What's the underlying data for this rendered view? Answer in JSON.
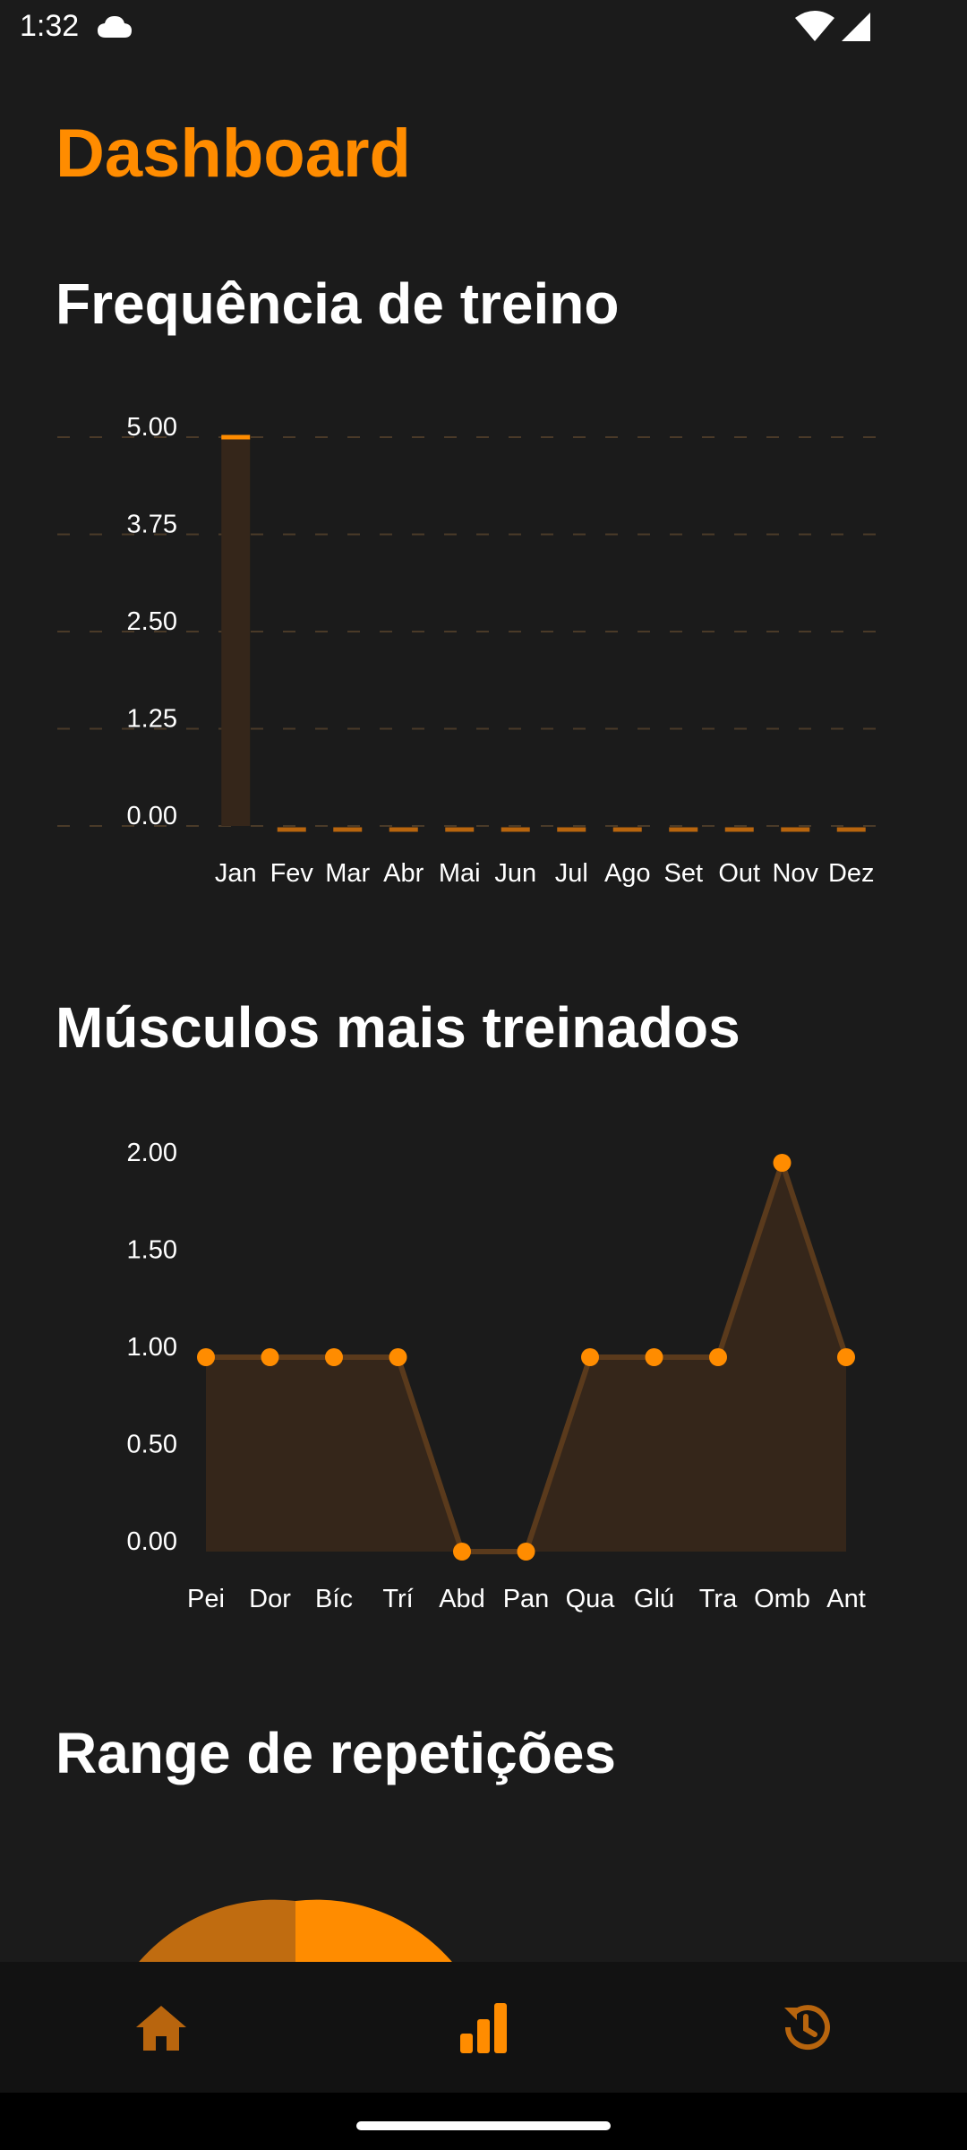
{
  "status_bar": {
    "time": "1:32",
    "icons": [
      "cloud-icon",
      "wifi-icon",
      "cell-signal-icon"
    ]
  },
  "page": {
    "title": "Dashboard"
  },
  "colors": {
    "accent": "#ff8c00",
    "background": "#1b1b1b",
    "nav_background": "#121212",
    "fill": "#35261a"
  },
  "sections": {
    "frequency": {
      "title": "Frequência de treino"
    },
    "muscles": {
      "title": "Músculos mais treinados"
    },
    "reps": {
      "title": "Range de repetições"
    }
  },
  "chart_data": [
    {
      "type": "bar",
      "categories": [
        "Jan",
        "Fev",
        "Mar",
        "Abr",
        "Mai",
        "Jun",
        "Jul",
        "Ago",
        "Set",
        "Out",
        "Nov",
        "Dez"
      ],
      "values": [
        5,
        0,
        0,
        0,
        0,
        0,
        0,
        0,
        0,
        0,
        0,
        0
      ],
      "yticks": [
        "5.00",
        "3.75",
        "2.50",
        "1.25",
        "0.00"
      ],
      "ylim": [
        0,
        5
      ],
      "grid": true
    },
    {
      "type": "line",
      "categories": [
        "Pei",
        "Dor",
        "Bíc",
        "Trí",
        "Abd",
        "Pan",
        "Qua",
        "Glú",
        "Tra",
        "Omb",
        "Ant"
      ],
      "values": [
        1,
        1,
        1,
        1,
        0,
        0,
        1,
        1,
        1,
        2,
        1
      ],
      "yticks": [
        "2.00",
        "1.50",
        "1.00",
        "0.50",
        "0.00"
      ],
      "ylim": [
        0,
        2
      ],
      "area_fill": true,
      "grid": false
    },
    {
      "type": "pie",
      "note_visible": "partially visible, cut off by bottom navigation"
    }
  ],
  "bottom_nav": {
    "items": [
      {
        "icon": "home-icon",
        "active": false
      },
      {
        "icon": "bar-chart-icon",
        "active": true
      },
      {
        "icon": "history-icon",
        "active": false
      }
    ]
  }
}
